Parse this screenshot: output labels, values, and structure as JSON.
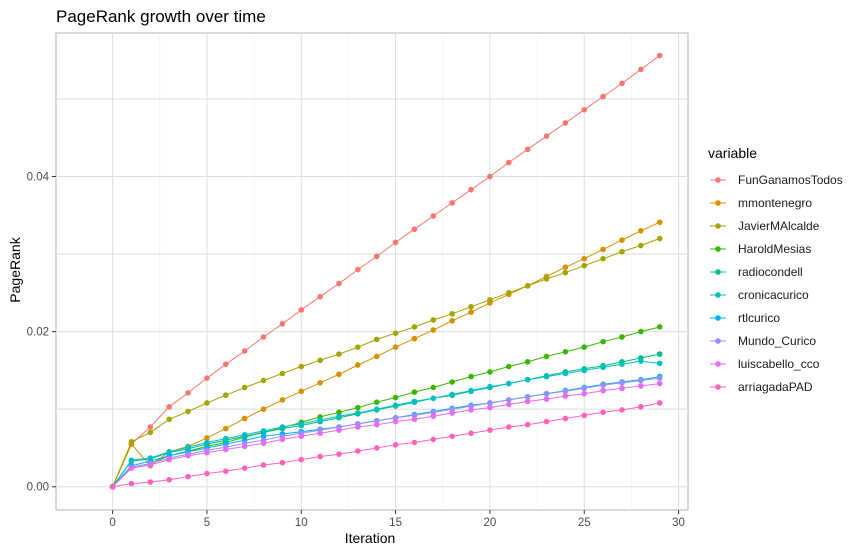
{
  "chart_data": {
    "type": "line",
    "title": "PageRank growth over time",
    "xlabel": "Iteration",
    "ylabel": "PageRank",
    "xlim": [
      -3,
      30.5
    ],
    "ylim": [
      -0.003,
      0.0585
    ],
    "x_ticks": [
      0,
      5,
      10,
      15,
      20,
      25,
      30
    ],
    "y_ticks": [
      0.0,
      0.02,
      0.04
    ],
    "y_tick_labels": [
      "0.00",
      "0.02",
      "0.04"
    ],
    "grid": true,
    "legend_title": "variable",
    "legend_position": "right",
    "x": [
      0,
      1,
      2,
      3,
      4,
      5,
      6,
      7,
      8,
      9,
      10,
      11,
      12,
      13,
      14,
      15,
      16,
      17,
      18,
      19,
      20,
      21,
      22,
      23,
      24,
      25,
      26,
      27,
      28,
      29
    ],
    "series": [
      {
        "name": "FunGanamosTodos",
        "color": "#F8766D",
        "values": [
          0,
          0.0055,
          0.0077,
          0.0103,
          0.0121,
          0.014,
          0.0158,
          0.0175,
          0.0193,
          0.021,
          0.0228,
          0.0245,
          0.0262,
          0.028,
          0.0297,
          0.0315,
          0.0332,
          0.0349,
          0.0366,
          0.0383,
          0.04,
          0.0418,
          0.0435,
          0.0452,
          0.0469,
          0.0486,
          0.0503,
          0.052,
          0.0538,
          0.0556
        ]
      },
      {
        "name": "mmontenegro",
        "color": "#D89000",
        "values": [
          0,
          0.0055,
          0.0027,
          0.0045,
          0.0052,
          0.0063,
          0.0075,
          0.0088,
          0.01,
          0.0112,
          0.0123,
          0.0134,
          0.0145,
          0.0157,
          0.0168,
          0.018,
          0.0191,
          0.0202,
          0.0214,
          0.0225,
          0.0237,
          0.0248,
          0.0259,
          0.0271,
          0.0283,
          0.0294,
          0.0306,
          0.0318,
          0.033,
          0.0341
        ]
      },
      {
        "name": "JavierMAlcalde",
        "color": "#A3A500",
        "values": [
          0,
          0.0058,
          0.007,
          0.0087,
          0.0097,
          0.0108,
          0.0118,
          0.0128,
          0.0137,
          0.0146,
          0.0155,
          0.0163,
          0.0171,
          0.018,
          0.019,
          0.0198,
          0.0206,
          0.0215,
          0.0223,
          0.0232,
          0.0241,
          0.025,
          0.0259,
          0.0268,
          0.0276,
          0.0285,
          0.0294,
          0.0303,
          0.0311,
          0.032
        ]
      },
      {
        "name": "HaroldMesias",
        "color": "#39B600",
        "values": [
          0,
          0.0025,
          0.003,
          0.004,
          0.0046,
          0.0052,
          0.0057,
          0.0064,
          0.007,
          0.0076,
          0.0083,
          0.009,
          0.0096,
          0.0102,
          0.0109,
          0.0115,
          0.0122,
          0.0128,
          0.0135,
          0.0142,
          0.0148,
          0.0155,
          0.0161,
          0.0168,
          0.0174,
          0.018,
          0.0187,
          0.0193,
          0.02,
          0.0206
        ]
      },
      {
        "name": "radiocondell",
        "color": "#00BF7D",
        "values": [
          0,
          0.0033,
          0.0036,
          0.0044,
          0.0049,
          0.0055,
          0.006,
          0.0065,
          0.007,
          0.0075,
          0.0079,
          0.0084,
          0.0089,
          0.0094,
          0.0099,
          0.0104,
          0.0109,
          0.0114,
          0.0118,
          0.0123,
          0.0128,
          0.0133,
          0.0138,
          0.0143,
          0.0148,
          0.0152,
          0.0156,
          0.0161,
          0.0166,
          0.0171
        ]
      },
      {
        "name": "cronicacurico",
        "color": "#00BFC4",
        "values": [
          0,
          0.0034,
          0.0037,
          0.0045,
          0.0051,
          0.0057,
          0.0062,
          0.0067,
          0.0072,
          0.0077,
          0.0081,
          0.0086,
          0.0091,
          0.0095,
          0.01,
          0.0105,
          0.011,
          0.0114,
          0.0119,
          0.0124,
          0.0129,
          0.0133,
          0.0138,
          0.0142,
          0.0146,
          0.015,
          0.0154,
          0.0158,
          0.0162,
          0.0159
        ]
      },
      {
        "name": "rtlcurico",
        "color": "#00B0F6",
        "values": [
          0,
          0.0027,
          0.0033,
          0.004,
          0.0045,
          0.005,
          0.0055,
          0.006,
          0.0065,
          0.0068,
          0.0071,
          0.0074,
          0.0077,
          0.0081,
          0.0085,
          0.0089,
          0.0093,
          0.0097,
          0.0101,
          0.0105,
          0.0108,
          0.0112,
          0.0116,
          0.012,
          0.0124,
          0.0128,
          0.0132,
          0.0135,
          0.0138,
          0.0142
        ]
      },
      {
        "name": "Mundo_Curico",
        "color": "#9590FF",
        "values": [
          0,
          0.0025,
          0.003,
          0.0037,
          0.0042,
          0.0047,
          0.0051,
          0.0056,
          0.006,
          0.0065,
          0.0069,
          0.0073,
          0.0077,
          0.0081,
          0.0085,
          0.0089,
          0.0092,
          0.0096,
          0.01,
          0.0104,
          0.0108,
          0.0112,
          0.0116,
          0.012,
          0.0123,
          0.0127,
          0.0131,
          0.0134,
          0.0137,
          0.014
        ]
      },
      {
        "name": "luiscabello_cco",
        "color": "#E76BF3",
        "values": [
          0,
          0.0024,
          0.0028,
          0.0035,
          0.004,
          0.0044,
          0.0048,
          0.0052,
          0.0056,
          0.0061,
          0.0065,
          0.0069,
          0.0073,
          0.0077,
          0.008,
          0.0084,
          0.0087,
          0.0091,
          0.0095,
          0.0099,
          0.0102,
          0.0106,
          0.011,
          0.0113,
          0.0117,
          0.012,
          0.0124,
          0.0127,
          0.013,
          0.0133
        ]
      },
      {
        "name": "arriagadaPAD",
        "color": "#FF62BC",
        "values": [
          0,
          0.0004,
          0.0006,
          0.0009,
          0.0013,
          0.0017,
          0.002,
          0.0024,
          0.0028,
          0.0031,
          0.0035,
          0.0039,
          0.0042,
          0.0046,
          0.005,
          0.0054,
          0.0057,
          0.0061,
          0.0065,
          0.0069,
          0.0073,
          0.0077,
          0.008,
          0.0084,
          0.0088,
          0.0092,
          0.0096,
          0.0099,
          0.0103,
          0.0108
        ]
      }
    ]
  }
}
